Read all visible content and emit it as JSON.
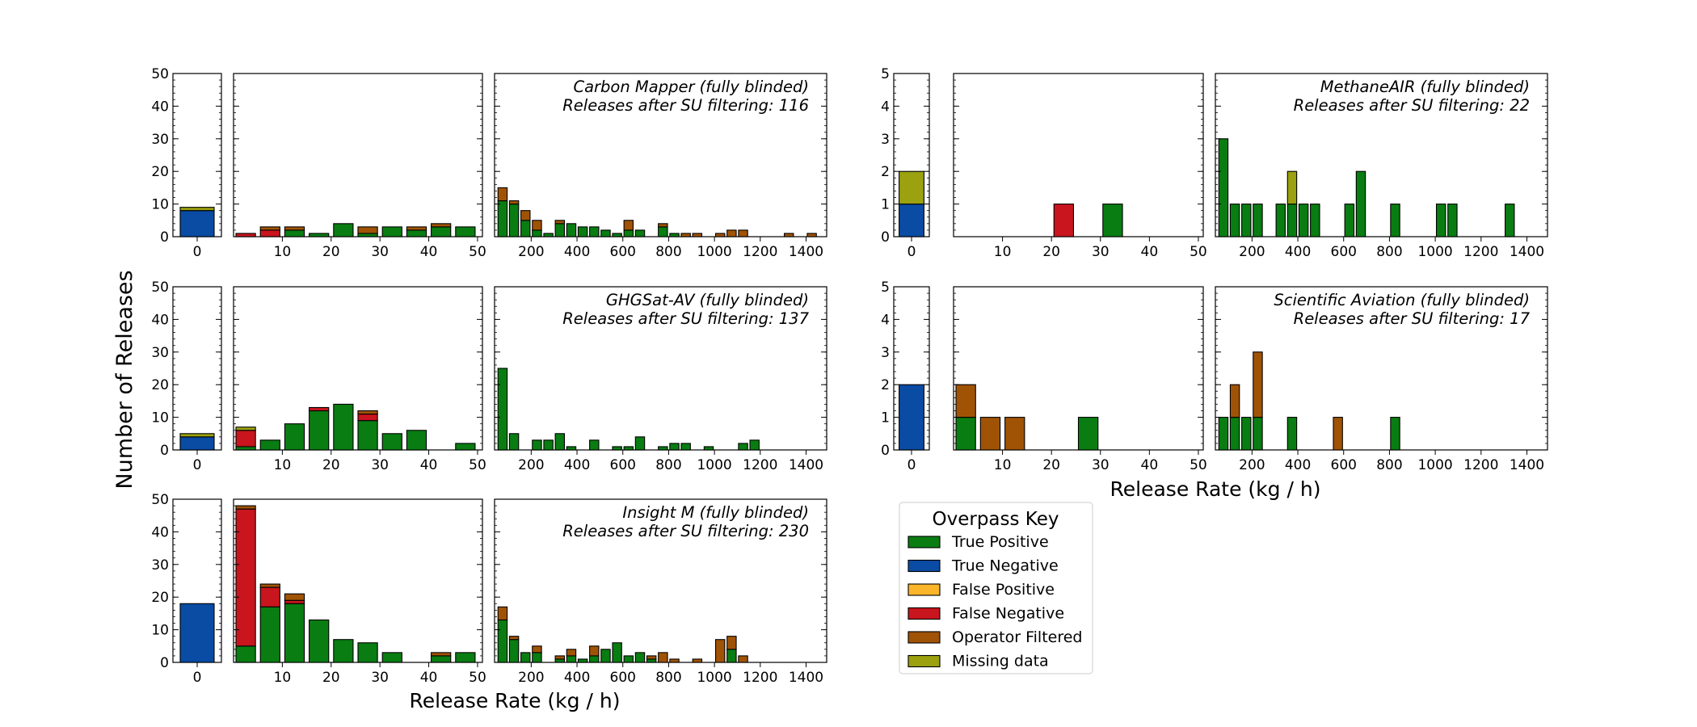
{
  "colors": {
    "True Positive": "#097d12",
    "True Negative": "#0a4ba3",
    "False Positive": "#fbb52b",
    "False Negative": "#c9151e",
    "Operator Filtered": "#a05305",
    "Missing data": "#9ba10f"
  },
  "figure": {
    "ylabel": "Number of Releases",
    "xlabel_left": "Release Rate (kg / h)",
    "xlabel_right": "Release Rate (kg / h)"
  },
  "legend": {
    "title": "Overpass Key",
    "entries": [
      "True Positive",
      "True Negative",
      "False Positive",
      "False Negative",
      "Operator Filtered",
      "Missing data"
    ]
  },
  "chart_data": [
    {
      "type": "bar",
      "stacked": true,
      "id": "carbon-mapper",
      "annotation_line1": "Carbon Mapper (fully blinded)",
      "annotation_line2": "Releases after SU filtering: 116",
      "ylim": [
        0,
        50
      ],
      "yticks": [
        0,
        10,
        20,
        30,
        40,
        50
      ],
      "panels": {
        "zero": {
          "xlim": [
            -1,
            1
          ],
          "xticks": [
            0
          ],
          "bars": [
            {
              "x": 0,
              "True Negative": 8,
              "Missing data": 1
            }
          ]
        },
        "low": {
          "xlim": [
            0,
            51
          ],
          "xticks": [
            10,
            20,
            30,
            40,
            50
          ],
          "bars": [
            {
              "x": 2.5,
              "False Negative": 1
            },
            {
              "x": 7.5,
              "False Negative": 2,
              "Operator Filtered": 1
            },
            {
              "x": 12.5,
              "True Positive": 2,
              "Operator Filtered": 1
            },
            {
              "x": 17.5,
              "True Positive": 1
            },
            {
              "x": 22.5,
              "True Positive": 4
            },
            {
              "x": 27.5,
              "True Positive": 1,
              "Operator Filtered": 2
            },
            {
              "x": 32.5,
              "True Positive": 3
            },
            {
              "x": 37.5,
              "True Positive": 2,
              "Operator Filtered": 1
            },
            {
              "x": 42.5,
              "True Positive": 3,
              "Operator Filtered": 1
            },
            {
              "x": 47.5,
              "True Positive": 3
            }
          ]
        },
        "high": {
          "xlim": [
            40,
            1490
          ],
          "xticks": [
            200,
            400,
            600,
            800,
            1000,
            1200,
            1400
          ],
          "bars": [
            {
              "x": 75,
              "True Positive": 11,
              "Operator Filtered": 4
            },
            {
              "x": 125,
              "True Positive": 10,
              "Operator Filtered": 1
            },
            {
              "x": 175,
              "True Positive": 5,
              "Operator Filtered": 3
            },
            {
              "x": 225,
              "True Positive": 2,
              "Operator Filtered": 3
            },
            {
              "x": 275,
              "True Positive": 1
            },
            {
              "x": 325,
              "True Positive": 4,
              "Operator Filtered": 1
            },
            {
              "x": 375,
              "True Positive": 4
            },
            {
              "x": 425,
              "True Positive": 3
            },
            {
              "x": 475,
              "True Positive": 3
            },
            {
              "x": 525,
              "True Positive": 2
            },
            {
              "x": 575,
              "True Positive": 1
            },
            {
              "x": 625,
              "True Positive": 2,
              "Operator Filtered": 3
            },
            {
              "x": 675,
              "True Positive": 2
            },
            {
              "x": 775,
              "True Positive": 3,
              "Operator Filtered": 1
            },
            {
              "x": 825,
              "True Positive": 1
            },
            {
              "x": 875,
              "Operator Filtered": 1
            },
            {
              "x": 925,
              "Operator Filtered": 1
            },
            {
              "x": 1025,
              "Operator Filtered": 1
            },
            {
              "x": 1075,
              "Operator Filtered": 2
            },
            {
              "x": 1125,
              "Operator Filtered": 2
            },
            {
              "x": 1325,
              "Operator Filtered": 1
            },
            {
              "x": 1425,
              "Operator Filtered": 1
            }
          ]
        }
      }
    },
    {
      "type": "bar",
      "stacked": true,
      "id": "ghgsat-av",
      "annotation_line1": "GHGSat-AV (fully blinded)",
      "annotation_line2": "Releases after SU filtering: 137",
      "ylim": [
        0,
        50
      ],
      "yticks": [
        0,
        10,
        20,
        30,
        40,
        50
      ],
      "panels": {
        "zero": {
          "xlim": [
            -1,
            1
          ],
          "xticks": [
            0
          ],
          "bars": [
            {
              "x": 0,
              "True Negative": 4,
              "Missing data": 1
            }
          ]
        },
        "low": {
          "xlim": [
            0,
            51
          ],
          "xticks": [
            10,
            20,
            30,
            40,
            50
          ],
          "bars": [
            {
              "x": 2.5,
              "True Positive": 1,
              "False Negative": 5,
              "Missing data": 1
            },
            {
              "x": 7.5,
              "True Positive": 3
            },
            {
              "x": 12.5,
              "True Positive": 8
            },
            {
              "x": 17.5,
              "True Positive": 12,
              "False Negative": 1
            },
            {
              "x": 22.5,
              "True Positive": 14
            },
            {
              "x": 27.5,
              "True Positive": 9,
              "False Negative": 2,
              "Operator Filtered": 1
            },
            {
              "x": 32.5,
              "True Positive": 5
            },
            {
              "x": 37.5,
              "True Positive": 6
            },
            {
              "x": 47.5,
              "True Positive": 2
            }
          ]
        },
        "high": {
          "xlim": [
            40,
            1490
          ],
          "xticks": [
            200,
            400,
            600,
            800,
            1000,
            1200,
            1400
          ],
          "bars": [
            {
              "x": 75,
              "True Positive": 25
            },
            {
              "x": 125,
              "True Positive": 5
            },
            {
              "x": 225,
              "True Positive": 3
            },
            {
              "x": 275,
              "True Positive": 3
            },
            {
              "x": 325,
              "True Positive": 5
            },
            {
              "x": 375,
              "True Positive": 1
            },
            {
              "x": 475,
              "True Positive": 3
            },
            {
              "x": 575,
              "True Positive": 1
            },
            {
              "x": 625,
              "True Positive": 1
            },
            {
              "x": 675,
              "True Positive": 4
            },
            {
              "x": 775,
              "True Positive": 1
            },
            {
              "x": 825,
              "True Positive": 2
            },
            {
              "x": 875,
              "True Positive": 2
            },
            {
              "x": 975,
              "True Positive": 1
            },
            {
              "x": 1125,
              "True Positive": 2
            },
            {
              "x": 1175,
              "True Positive": 3
            }
          ]
        }
      }
    },
    {
      "type": "bar",
      "stacked": true,
      "id": "insight-m",
      "annotation_line1": "Insight M (fully blinded)",
      "annotation_line2": "Releases after SU filtering: 230",
      "ylim": [
        0,
        50
      ],
      "yticks": [
        0,
        10,
        20,
        30,
        40,
        50
      ],
      "panels": {
        "zero": {
          "xlim": [
            -1,
            1
          ],
          "xticks": [
            0
          ],
          "bars": [
            {
              "x": 0,
              "True Negative": 18
            }
          ]
        },
        "low": {
          "xlim": [
            0,
            51
          ],
          "xticks": [
            10,
            20,
            30,
            40,
            50
          ],
          "bars": [
            {
              "x": 2.5,
              "True Positive": 5,
              "False Negative": 42,
              "Operator Filtered": 1
            },
            {
              "x": 7.5,
              "True Positive": 17,
              "False Negative": 6,
              "Operator Filtered": 1
            },
            {
              "x": 12.5,
              "True Positive": 18,
              "False Negative": 1,
              "Operator Filtered": 2
            },
            {
              "x": 17.5,
              "True Positive": 13
            },
            {
              "x": 22.5,
              "True Positive": 7
            },
            {
              "x": 27.5,
              "True Positive": 6
            },
            {
              "x": 32.5,
              "True Positive": 3
            },
            {
              "x": 42.5,
              "True Positive": 2,
              "Operator Filtered": 1
            },
            {
              "x": 47.5,
              "True Positive": 3
            }
          ]
        },
        "high": {
          "xlim": [
            40,
            1490
          ],
          "xticks": [
            200,
            400,
            600,
            800,
            1000,
            1200,
            1400
          ],
          "bars": [
            {
              "x": 75,
              "True Positive": 13,
              "Operator Filtered": 4
            },
            {
              "x": 125,
              "True Positive": 7,
              "Operator Filtered": 1
            },
            {
              "x": 175,
              "True Positive": 3
            },
            {
              "x": 225,
              "True Positive": 3,
              "Operator Filtered": 2
            },
            {
              "x": 325,
              "True Positive": 1,
              "Operator Filtered": 1
            },
            {
              "x": 375,
              "True Positive": 2,
              "Operator Filtered": 2
            },
            {
              "x": 425,
              "True Positive": 1
            },
            {
              "x": 475,
              "True Positive": 2,
              "Operator Filtered": 3
            },
            {
              "x": 525,
              "True Positive": 4
            },
            {
              "x": 575,
              "True Positive": 6
            },
            {
              "x": 625,
              "True Positive": 2
            },
            {
              "x": 675,
              "True Positive": 3
            },
            {
              "x": 725,
              "True Positive": 1,
              "Operator Filtered": 1
            },
            {
              "x": 775,
              "Operator Filtered": 3
            },
            {
              "x": 825,
              "Operator Filtered": 1
            },
            {
              "x": 925,
              "Operator Filtered": 1
            },
            {
              "x": 1025,
              "Operator Filtered": 7
            },
            {
              "x": 1075,
              "True Positive": 4,
              "Operator Filtered": 4
            },
            {
              "x": 1125,
              "Operator Filtered": 2
            }
          ]
        }
      }
    },
    {
      "type": "bar",
      "stacked": true,
      "id": "methaneair",
      "annotation_line1": "MethaneAIR (fully blinded)",
      "annotation_line2": "Releases after SU filtering: 22",
      "ylim": [
        0,
        5
      ],
      "yticks": [
        0,
        1,
        2,
        3,
        4,
        5
      ],
      "panels": {
        "zero": {
          "xlim": [
            -1,
            1
          ],
          "xticks": [
            0
          ],
          "bars": [
            {
              "x": 0,
              "True Negative": 1,
              "Missing data": 1
            }
          ]
        },
        "low": {
          "xlim": [
            0,
            51
          ],
          "xticks": [
            10,
            20,
            30,
            40,
            50
          ],
          "bars": [
            {
              "x": 22.5,
              "False Negative": 1
            },
            {
              "x": 32.5,
              "True Positive": 1
            }
          ]
        },
        "high": {
          "xlim": [
            40,
            1490
          ],
          "xticks": [
            200,
            400,
            600,
            800,
            1000,
            1200,
            1400
          ],
          "bars": [
            {
              "x": 75,
              "True Positive": 3
            },
            {
              "x": 125,
              "True Positive": 1
            },
            {
              "x": 175,
              "True Positive": 1
            },
            {
              "x": 225,
              "True Positive": 1
            },
            {
              "x": 325,
              "True Positive": 1
            },
            {
              "x": 375,
              "True Positive": 1,
              "Missing data": 1
            },
            {
              "x": 425,
              "True Positive": 1
            },
            {
              "x": 475,
              "True Positive": 1
            },
            {
              "x": 625,
              "True Positive": 1
            },
            {
              "x": 675,
              "True Positive": 2
            },
            {
              "x": 825,
              "True Positive": 1
            },
            {
              "x": 1025,
              "True Positive": 1
            },
            {
              "x": 1075,
              "True Positive": 1
            },
            {
              "x": 1325,
              "True Positive": 1
            }
          ]
        }
      }
    },
    {
      "type": "bar",
      "stacked": true,
      "id": "scientific-aviation",
      "annotation_line1": "Scientific Aviation (fully blinded)",
      "annotation_line2": "Releases after SU filtering: 17",
      "ylim": [
        0,
        5
      ],
      "yticks": [
        0,
        1,
        2,
        3,
        4,
        5
      ],
      "panels": {
        "zero": {
          "xlim": [
            -1,
            1
          ],
          "xticks": [
            0
          ],
          "bars": [
            {
              "x": 0,
              "True Negative": 2
            }
          ]
        },
        "low": {
          "xlim": [
            0,
            51
          ],
          "xticks": [
            10,
            20,
            30,
            40,
            50
          ],
          "bars": [
            {
              "x": 2.5,
              "True Positive": 1,
              "Operator Filtered": 1
            },
            {
              "x": 7.5,
              "Operator Filtered": 1
            },
            {
              "x": 12.5,
              "Operator Filtered": 1
            },
            {
              "x": 27.5,
              "True Positive": 1
            }
          ]
        },
        "high": {
          "xlim": [
            40,
            1490
          ],
          "xticks": [
            200,
            400,
            600,
            800,
            1000,
            1200,
            1400
          ],
          "bars": [
            {
              "x": 75,
              "True Positive": 1
            },
            {
              "x": 125,
              "True Positive": 1,
              "Operator Filtered": 1
            },
            {
              "x": 175,
              "True Positive": 1
            },
            {
              "x": 225,
              "True Positive": 1,
              "Operator Filtered": 2
            },
            {
              "x": 375,
              "True Positive": 1
            },
            {
              "x": 575,
              "Operator Filtered": 1
            },
            {
              "x": 825,
              "True Positive": 1
            }
          ]
        }
      }
    }
  ]
}
